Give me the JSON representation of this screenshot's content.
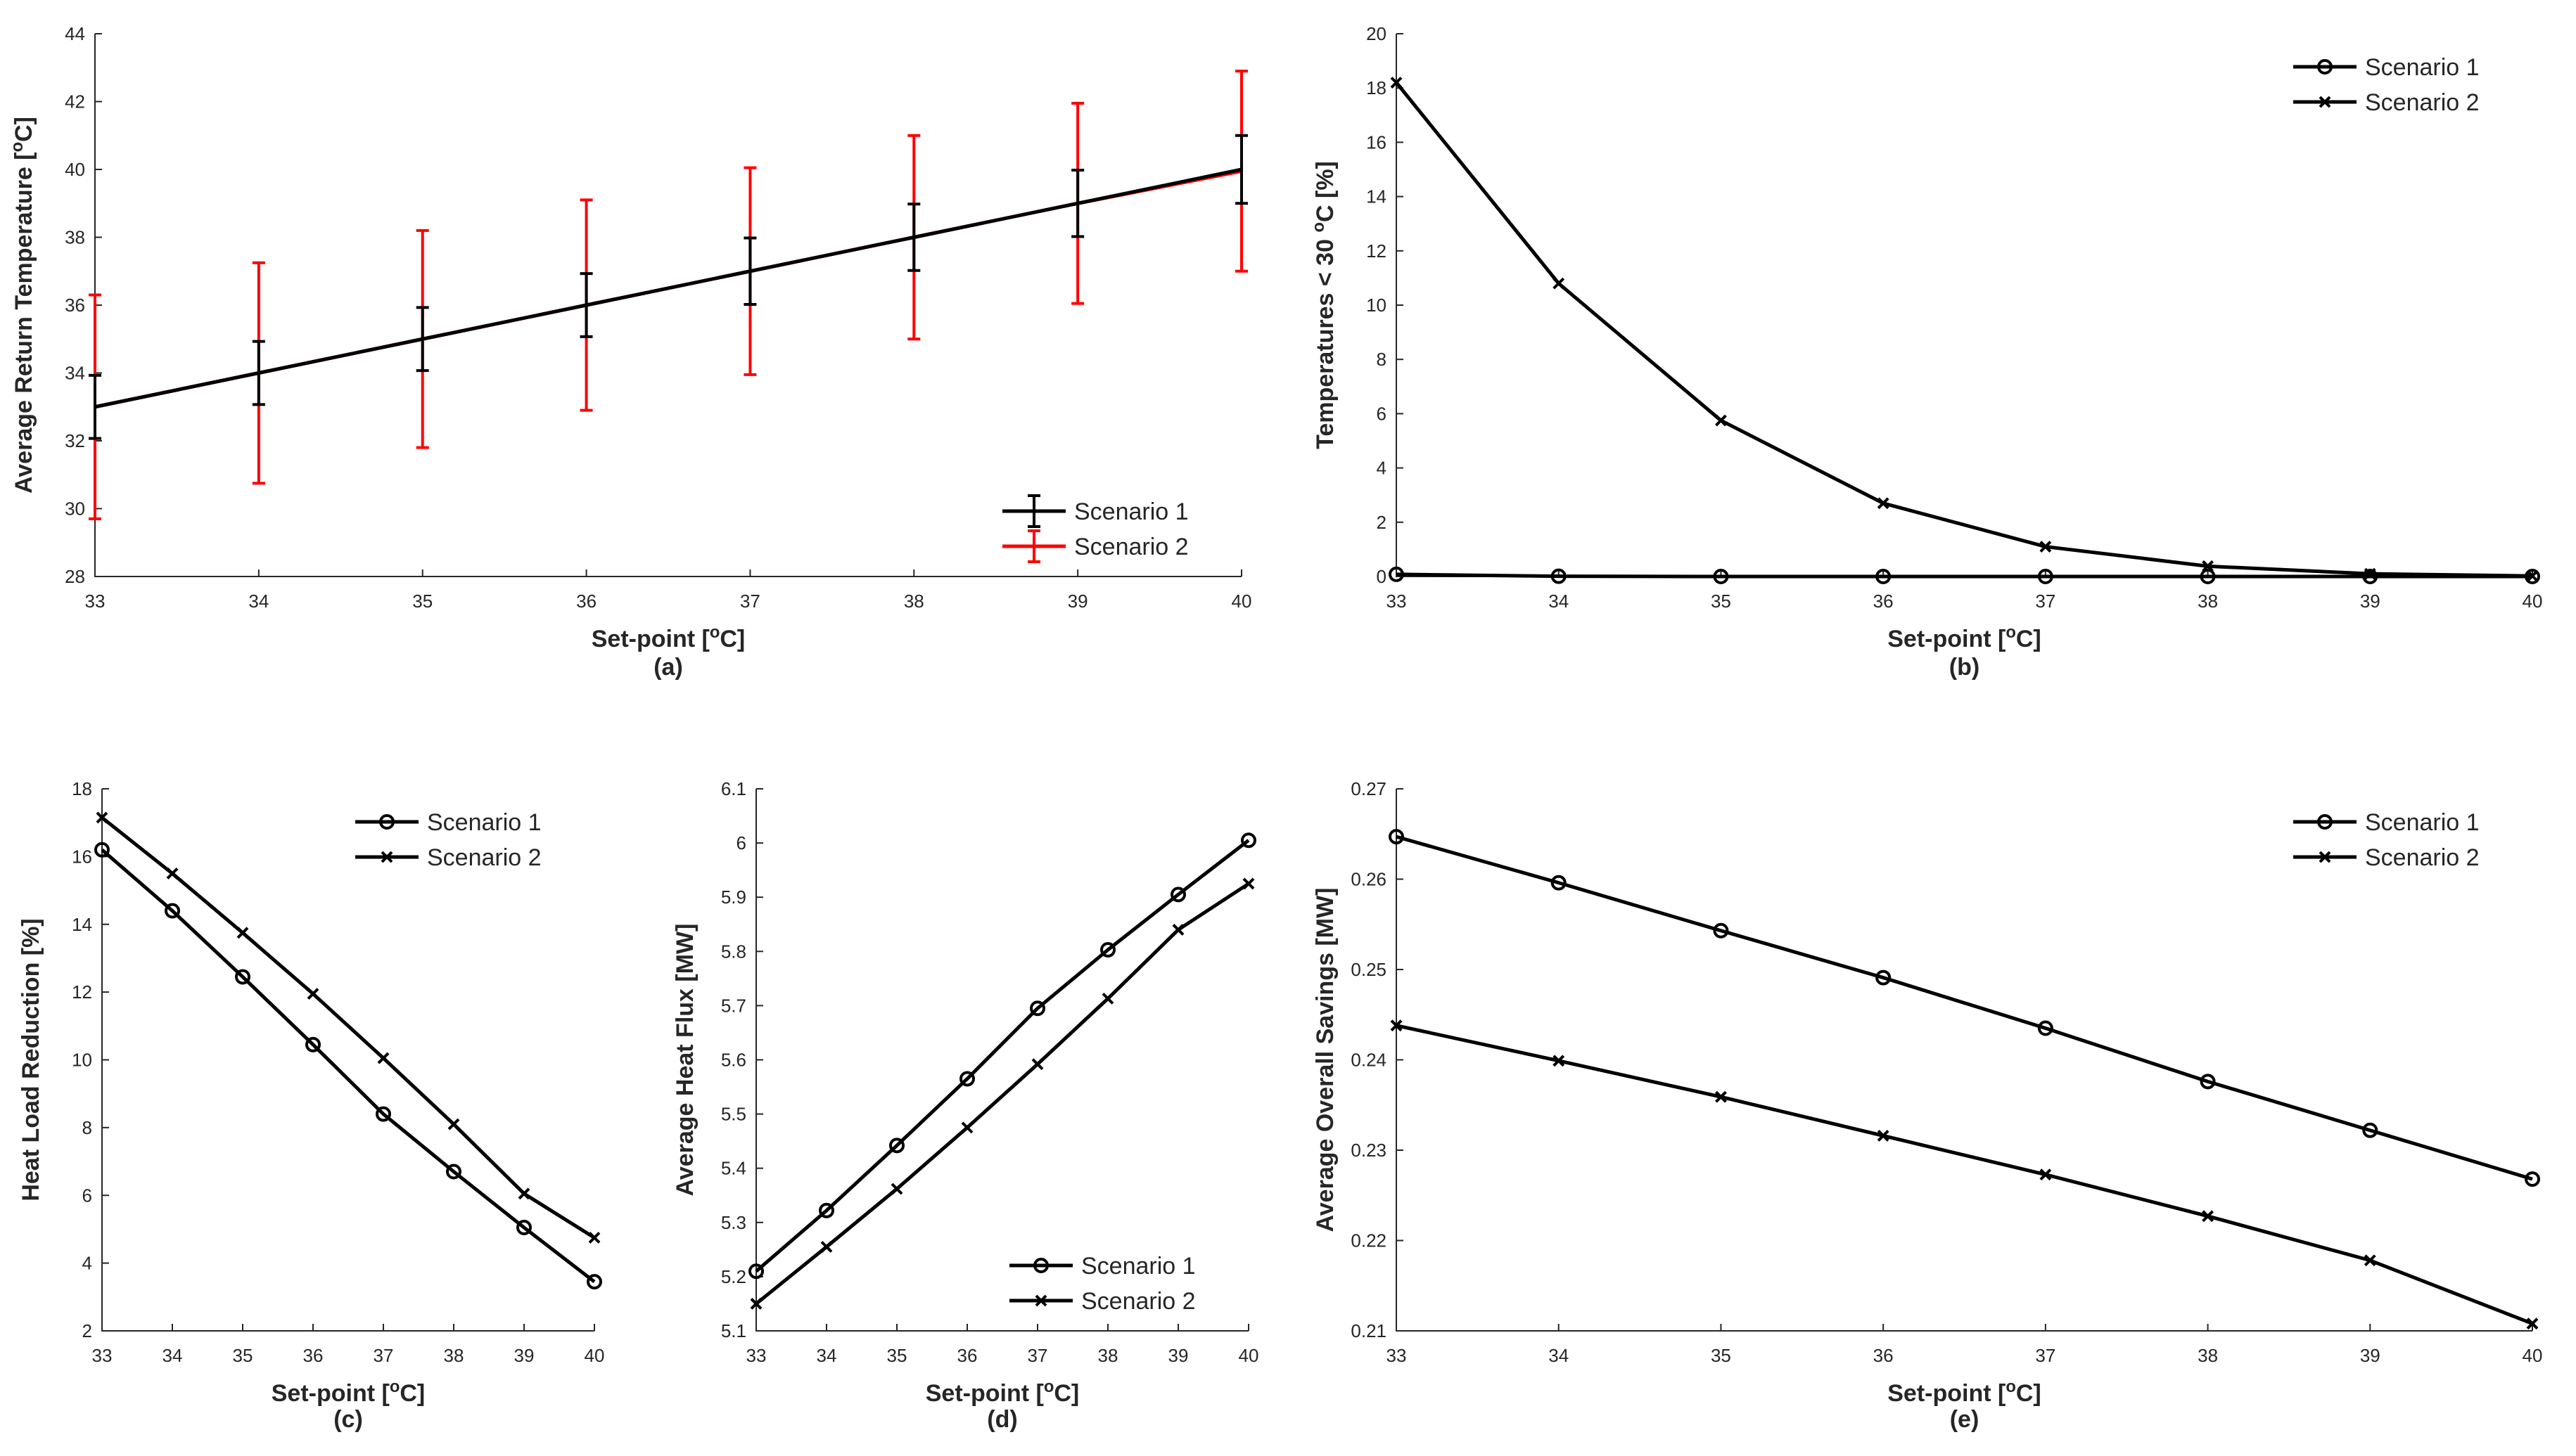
{
  "chart_data": [
    {
      "id": "a",
      "type": "line",
      "caption": "(a)",
      "xlabel": "Set-point [°C]",
      "ylabel": "Average Return Temperature [°C]",
      "xlim": [
        33,
        40
      ],
      "ylim": [
        28,
        44
      ],
      "xticks": [
        33,
        34,
        35,
        36,
        37,
        38,
        39,
        40
      ],
      "yticks": [
        28,
        30,
        32,
        34,
        36,
        38,
        40,
        42,
        44
      ],
      "legend_position": "bottom-right",
      "x": [
        33,
        34,
        35,
        36,
        37,
        38,
        39,
        40
      ],
      "series": [
        {
          "name": "Scenario 1",
          "color": "#000000",
          "marker": "errorbar",
          "values": [
            33,
            34,
            35,
            36,
            37,
            38,
            39,
            40
          ],
          "err": [
            0.93,
            0.93,
            0.93,
            0.93,
            0.98,
            0.98,
            0.98,
            1.0
          ]
        },
        {
          "name": "Scenario 2",
          "color": "#ff0000",
          "marker": "errorbar",
          "values": [
            33,
            34,
            35,
            36,
            37,
            38,
            39,
            39.95
          ],
          "err": [
            3.3,
            3.25,
            3.2,
            3.1,
            3.05,
            3.0,
            2.95,
            2.95
          ]
        }
      ]
    },
    {
      "id": "b",
      "type": "line",
      "caption": "(b)",
      "xlabel": "Set-point [°C]",
      "ylabel": "Temperatures < 30 °C [%]",
      "xlim": [
        33,
        40
      ],
      "ylim": [
        0,
        20
      ],
      "xticks": [
        33,
        34,
        35,
        36,
        37,
        38,
        39,
        40
      ],
      "yticks": [
        0,
        2,
        4,
        6,
        8,
        10,
        12,
        14,
        16,
        18,
        20
      ],
      "legend_position": "top-right",
      "x": [
        33,
        34,
        35,
        36,
        37,
        38,
        39,
        40
      ],
      "series": [
        {
          "name": "Scenario 1",
          "color": "#000000",
          "marker": "o",
          "values": [
            0.08,
            0.01,
            0.0,
            0.0,
            0.0,
            0.0,
            0.0,
            0.0
          ]
        },
        {
          "name": "Scenario 2",
          "color": "#000000",
          "marker": "x",
          "values": [
            18.2,
            10.8,
            5.75,
            2.7,
            1.1,
            0.38,
            0.1,
            0.02
          ]
        }
      ]
    },
    {
      "id": "c",
      "type": "line",
      "caption": "(c)",
      "xlabel": "Set-point [°C]",
      "ylabel": "Heat Load Reduction [%]",
      "xlim": [
        33,
        40
      ],
      "ylim": [
        2,
        18
      ],
      "xticks": [
        33,
        34,
        35,
        36,
        37,
        38,
        39,
        40
      ],
      "yticks": [
        2,
        4,
        6,
        8,
        10,
        12,
        14,
        16,
        18
      ],
      "legend_position": "top-right",
      "x": [
        33,
        34,
        35,
        36,
        37,
        38,
        39,
        40
      ],
      "series": [
        {
          "name": "Scenario 1",
          "color": "#000000",
          "marker": "o",
          "values": [
            16.2,
            14.4,
            12.45,
            10.45,
            8.4,
            6.7,
            5.05,
            3.45
          ]
        },
        {
          "name": "Scenario 2",
          "color": "#000000",
          "marker": "x",
          "values": [
            17.15,
            15.5,
            13.75,
            11.95,
            10.05,
            8.1,
            6.05,
            4.75
          ]
        }
      ]
    },
    {
      "id": "d",
      "type": "line",
      "caption": "(d)",
      "xlabel": "Set-point [°C]",
      "ylabel": "Average Heat Flux [MW]",
      "xlim": [
        33,
        40
      ],
      "ylim": [
        5.1,
        6.1
      ],
      "xticks": [
        33,
        34,
        35,
        36,
        37,
        38,
        39,
        40
      ],
      "yticks": [
        5.1,
        5.2,
        5.3,
        5.4,
        5.5,
        5.6,
        5.7,
        5.8,
        5.9,
        6,
        6.1
      ],
      "legend_position": "bottom-right",
      "x": [
        33,
        34,
        35,
        36,
        37,
        38,
        39,
        40
      ],
      "series": [
        {
          "name": "Scenario 1",
          "color": "#000000",
          "marker": "o",
          "values": [
            5.21,
            5.322,
            5.442,
            5.565,
            5.695,
            5.803,
            5.905,
            6.005
          ]
        },
        {
          "name": "Scenario 2",
          "color": "#000000",
          "marker": "x",
          "values": [
            5.15,
            5.255,
            5.362,
            5.475,
            5.592,
            5.713,
            5.84,
            5.925
          ]
        }
      ]
    },
    {
      "id": "e",
      "type": "line",
      "caption": "(e)",
      "xlabel": "Set-point [°C]",
      "ylabel": "Average Overall Savings [MW]",
      "xlim": [
        33,
        40
      ],
      "ylim": [
        0.21,
        0.27
      ],
      "xticks": [
        33,
        34,
        35,
        36,
        37,
        38,
        39,
        40
      ],
      "yticks": [
        0.21,
        0.22,
        0.23,
        0.24,
        0.25,
        0.26,
        0.27
      ],
      "legend_position": "top-right",
      "x": [
        33,
        34,
        35,
        36,
        37,
        38,
        39,
        40
      ],
      "series": [
        {
          "name": "Scenario 1",
          "color": "#000000",
          "marker": "o",
          "values": [
            0.2647,
            0.2596,
            0.2543,
            0.2491,
            0.2435,
            0.2376,
            0.2322,
            0.2268
          ]
        },
        {
          "name": "Scenario 2",
          "color": "#000000",
          "marker": "x",
          "values": [
            0.2438,
            0.2399,
            0.2359,
            0.2316,
            0.2273,
            0.2227,
            0.2178,
            0.2108
          ]
        }
      ]
    }
  ]
}
